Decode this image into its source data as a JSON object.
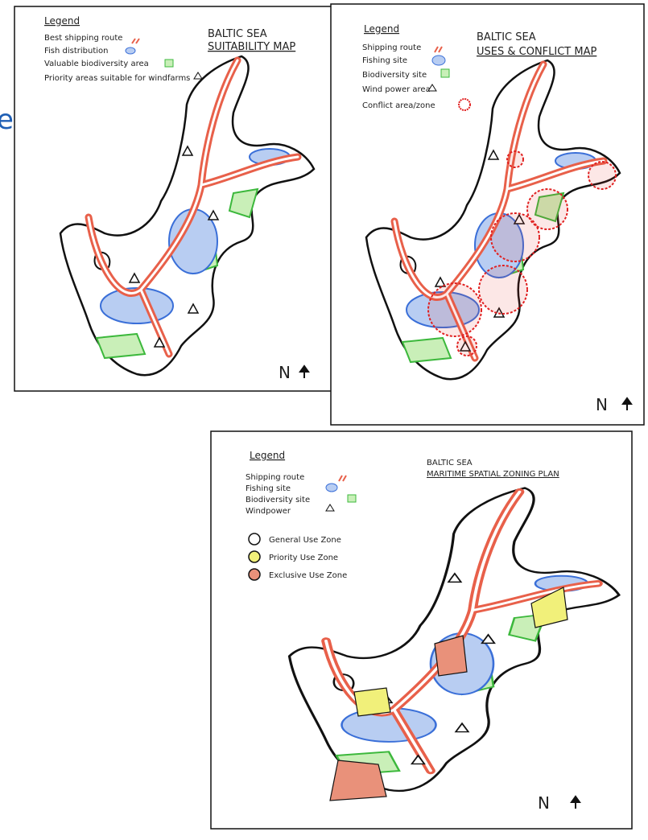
{
  "fragment": "e",
  "maps": [
    {
      "legend_title": "Legend",
      "legend": [
        "Best shipping route",
        "Fish distribution",
        "Valuable biodiversity area",
        "Priority areas suitable for windfarms"
      ],
      "title": [
        "BALTIC SEA",
        "SUITABILITY MAP"
      ],
      "north": "N"
    },
    {
      "legend_title": "Legend",
      "legend": [
        "Shipping route",
        "Fishing site",
        "Biodiversity site",
        "Wind power area",
        "Conflict area/zone"
      ],
      "title": [
        "BALTIC SEA",
        "USES & CONFLICT MAP"
      ],
      "north": "N"
    },
    {
      "legend_title": "Legend",
      "legend": [
        "Shipping route",
        "Fishing site",
        "Biodiversity site",
        "Windpower"
      ],
      "zones": [
        "General Use Zone",
        "Priority Use Zone",
        "Exclusive Use Zone"
      ],
      "title": [
        "BALTIC SEA",
        "MARITIME SPATIAL ZONING PLAN"
      ],
      "north": "N"
    }
  ]
}
